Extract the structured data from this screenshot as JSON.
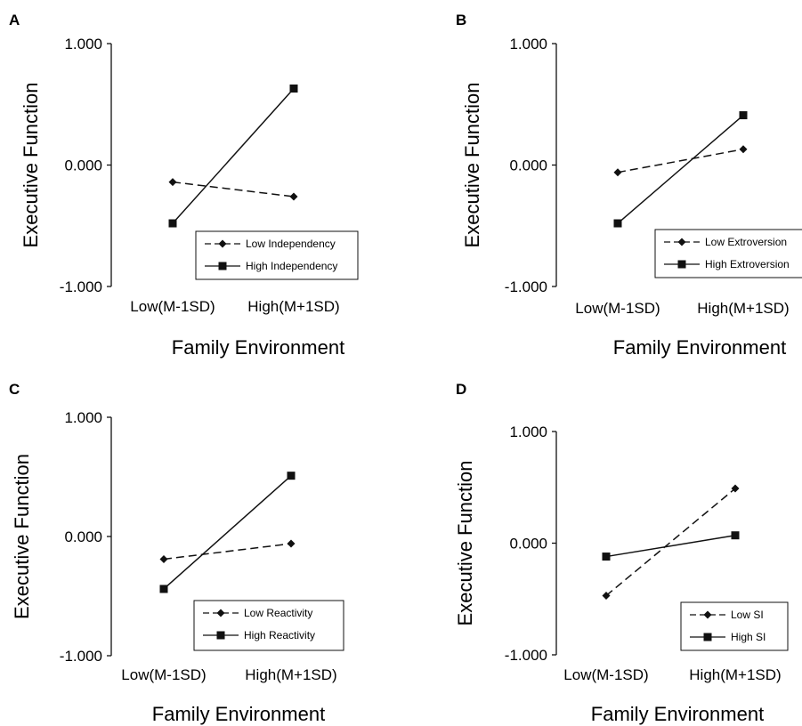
{
  "colors": {
    "ink": "#111111",
    "background": "#ffffff"
  },
  "chart_data": [
    {
      "panel": "A",
      "type": "line",
      "categories": [
        "Low(M-1SD)",
        "High(M+1SD)"
      ],
      "xlabel": "Family Environment",
      "ylabel": "Executive Function",
      "ylim": [
        -1,
        1
      ],
      "yticks": [
        "1.000",
        "0.000",
        "-1.000"
      ],
      "grid": false,
      "legend_position": "bottom-right",
      "series": [
        {
          "name": "Low Independency",
          "style": "dashed",
          "marker": "diamond",
          "values": [
            -0.14,
            -0.26
          ]
        },
        {
          "name": "High Independency",
          "style": "solid",
          "marker": "square",
          "values": [
            -0.48,
            0.63
          ]
        }
      ]
    },
    {
      "panel": "B",
      "type": "line",
      "categories": [
        "Low(M-1SD)",
        "High(M+1SD)"
      ],
      "xlabel": "Family Environment",
      "ylabel": "Executive Function",
      "ylim": [
        -1,
        1
      ],
      "yticks": [
        "1.000",
        "0.000",
        "-1.000"
      ],
      "grid": false,
      "legend_position": "bottom-right",
      "series": [
        {
          "name": "Low Extroversion",
          "style": "dashed",
          "marker": "diamond",
          "values": [
            -0.06,
            0.13
          ]
        },
        {
          "name": "High Extroversion",
          "style": "solid",
          "marker": "square",
          "values": [
            -0.48,
            0.41
          ]
        }
      ]
    },
    {
      "panel": "C",
      "type": "line",
      "categories": [
        "Low(M-1SD)",
        "High(M+1SD)"
      ],
      "xlabel": "Family Environment",
      "ylabel": "Executive Function",
      "ylim": [
        -1,
        1
      ],
      "yticks": [
        "1.000",
        "0.000",
        "-1.000"
      ],
      "grid": false,
      "legend_position": "bottom-right",
      "series": [
        {
          "name": "Low Reactivity",
          "style": "dashed",
          "marker": "diamond",
          "values": [
            -0.19,
            -0.06
          ]
        },
        {
          "name": "High Reactivity",
          "style": "solid",
          "marker": "square",
          "values": [
            -0.44,
            0.51
          ]
        }
      ]
    },
    {
      "panel": "D",
      "type": "line",
      "categories": [
        "Low(M-1SD)",
        "High(M+1SD)"
      ],
      "xlabel": "Family Environment",
      "ylabel": "Executive Function",
      "ylim": [
        -1,
        1
      ],
      "yticks": [
        "1.000",
        "0.000",
        "-1.000"
      ],
      "grid": false,
      "legend_position": "bottom-right",
      "series": [
        {
          "name": "Low SI",
          "style": "dashed",
          "marker": "diamond",
          "values": [
            -0.47,
            0.49
          ]
        },
        {
          "name": "High SI",
          "style": "solid",
          "marker": "square",
          "values": [
            -0.12,
            0.07
          ]
        }
      ]
    }
  ]
}
